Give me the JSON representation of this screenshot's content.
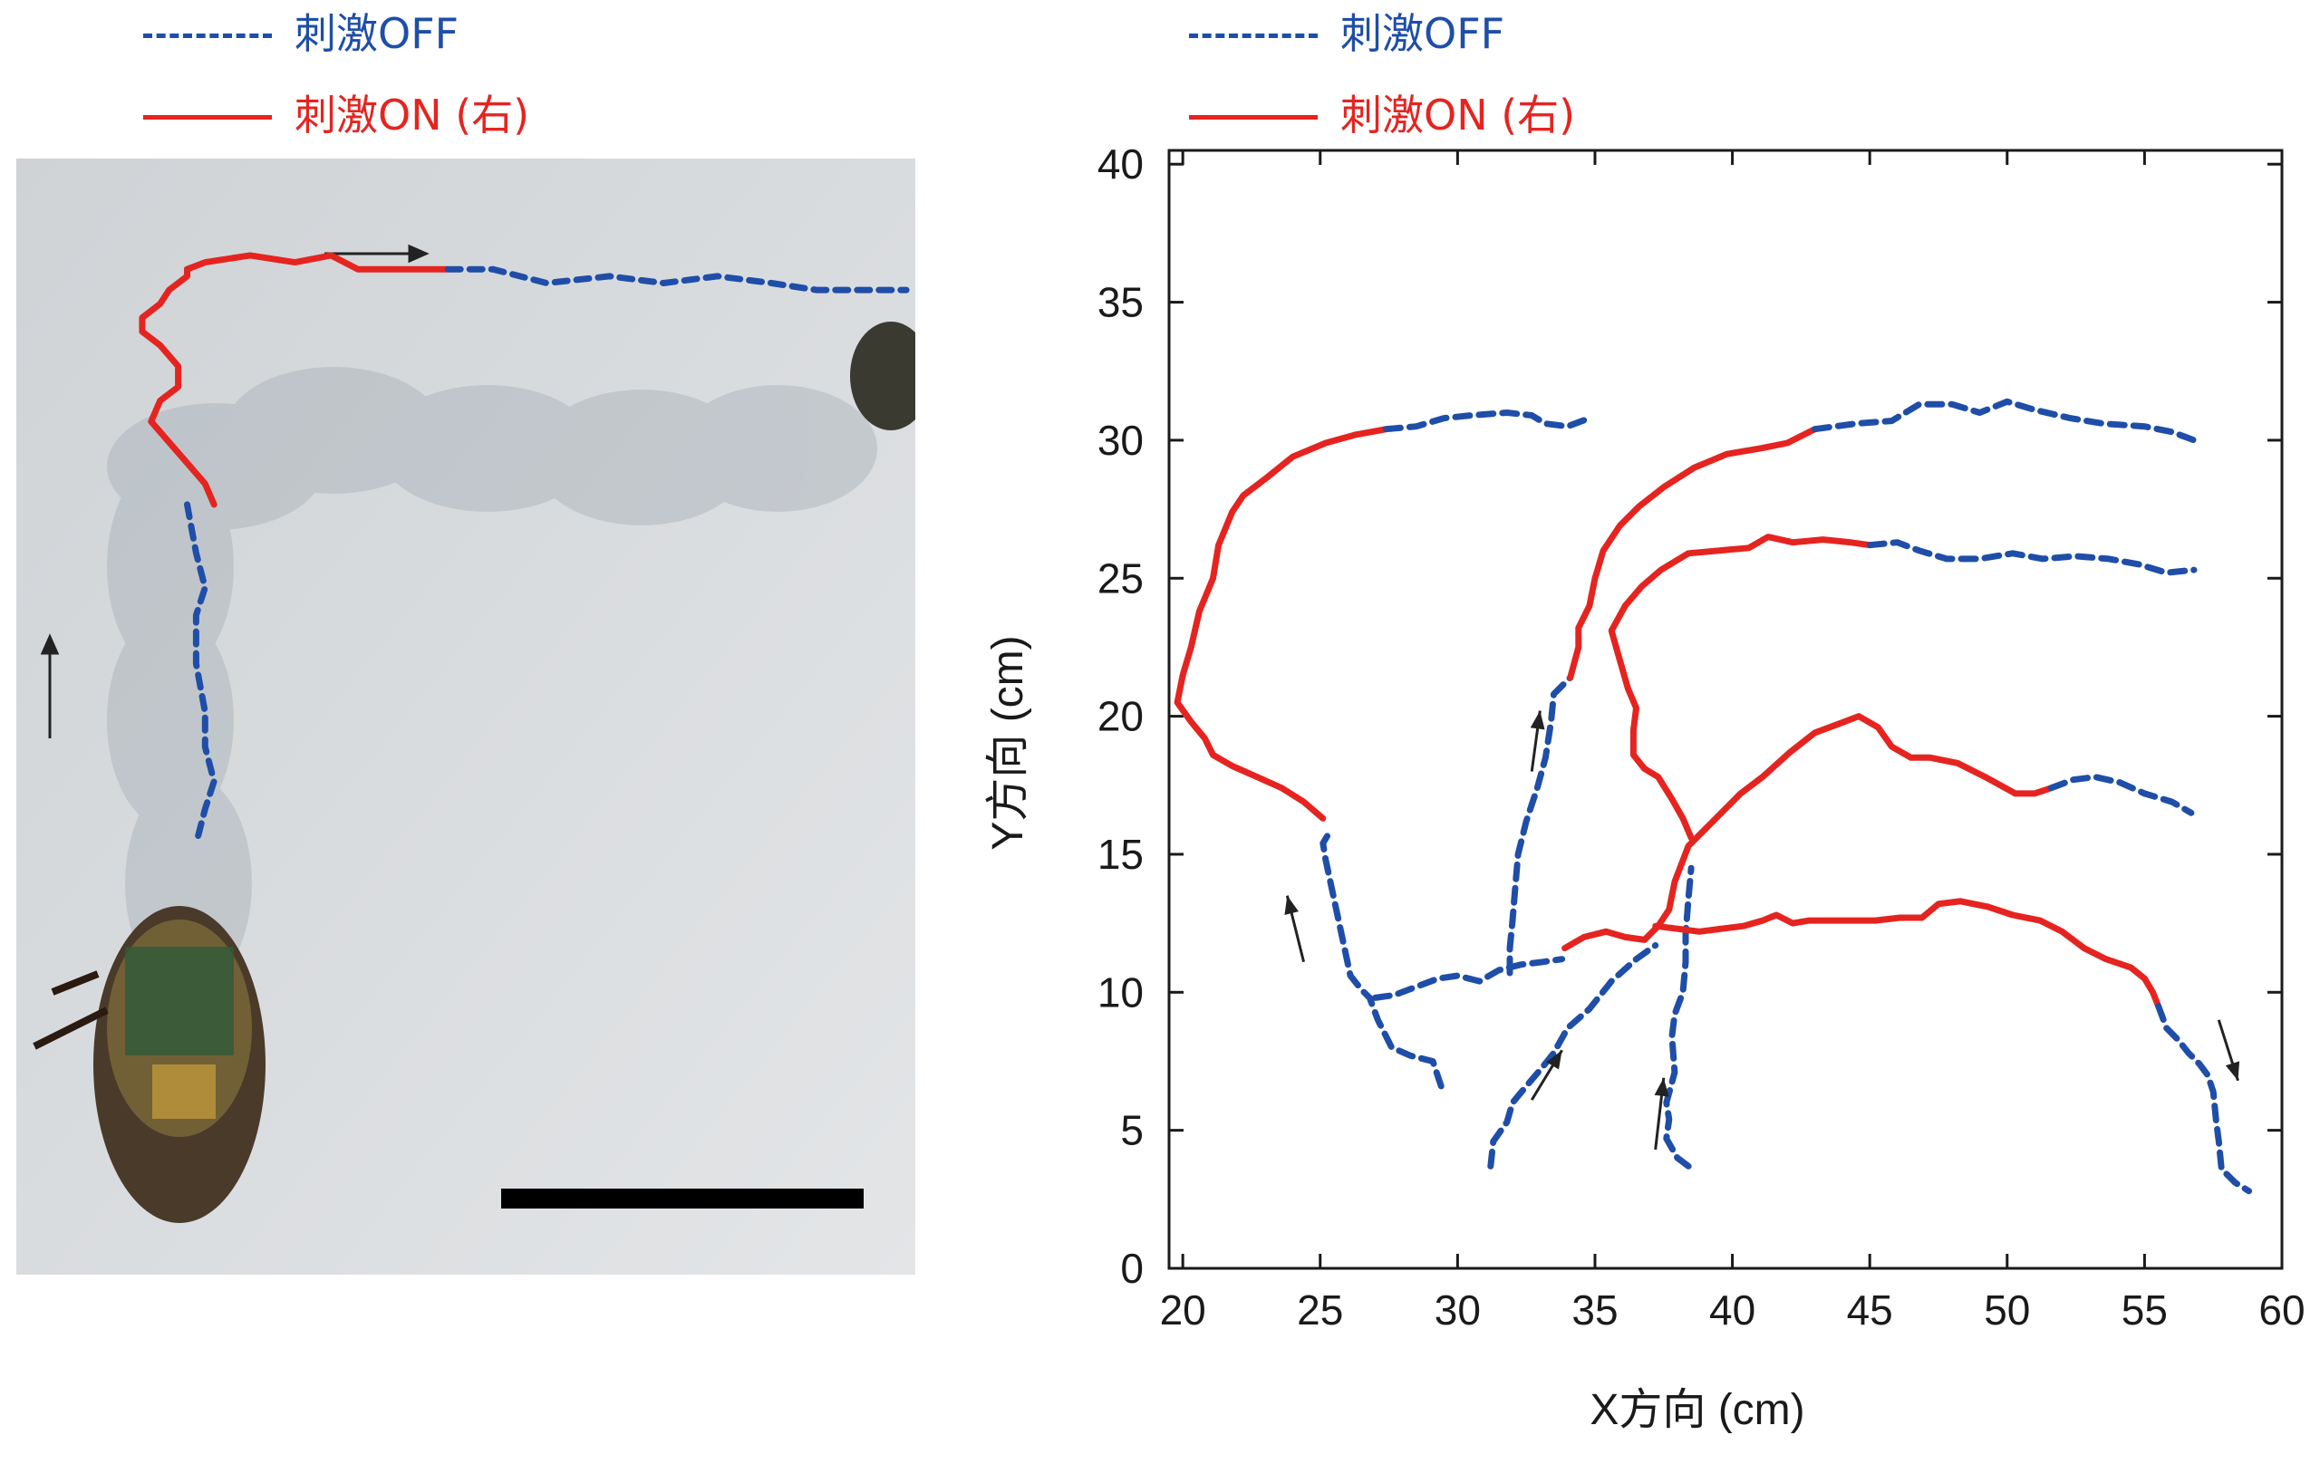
{
  "colors": {
    "off": "#1f4ea8",
    "on": "#e52420",
    "axis": "#1a1a1a",
    "photo_bg": "#d9dde0"
  },
  "legend": {
    "off_label": "刺激OFF",
    "on_label": "刺激ON (右)"
  },
  "photo": {
    "description_icon": "robot-cockroach-photo",
    "off_path": [
      [
        0.19,
        0.5
      ],
      [
        0.2,
        0.57
      ],
      [
        0.21,
        0.62
      ],
      [
        0.2,
        0.66
      ],
      [
        0.2,
        0.73
      ],
      [
        0.21,
        0.8
      ],
      [
        0.21,
        0.85
      ],
      [
        0.22,
        0.9
      ],
      [
        0.21,
        0.94
      ],
      [
        0.2,
        0.99
      ]
    ],
    "on_path": [
      [
        0.22,
        0.5
      ],
      [
        0.21,
        0.47
      ],
      [
        0.19,
        0.44
      ],
      [
        0.17,
        0.41
      ],
      [
        0.15,
        0.38
      ],
      [
        0.16,
        0.35
      ],
      [
        0.18,
        0.33
      ],
      [
        0.18,
        0.3
      ],
      [
        0.16,
        0.27
      ],
      [
        0.14,
        0.25
      ],
      [
        0.14,
        0.23
      ],
      [
        0.16,
        0.21
      ],
      [
        0.17,
        0.19
      ],
      [
        0.19,
        0.17
      ],
      [
        0.19,
        0.16
      ],
      [
        0.21,
        0.15
      ],
      [
        0.26,
        0.14
      ],
      [
        0.31,
        0.15
      ],
      [
        0.35,
        0.14
      ],
      [
        0.38,
        0.16
      ],
      [
        0.41,
        0.16
      ],
      [
        0.45,
        0.16
      ],
      [
        0.48,
        0.16
      ]
    ],
    "off_path2": [
      [
        0.48,
        0.16
      ],
      [
        0.53,
        0.16
      ],
      [
        0.59,
        0.18
      ],
      [
        0.66,
        0.17
      ],
      [
        0.72,
        0.18
      ],
      [
        0.78,
        0.17
      ],
      [
        0.84,
        0.18
      ],
      [
        0.89,
        0.19
      ],
      [
        0.95,
        0.19
      ],
      [
        0.99,
        0.19
      ]
    ]
  },
  "chart_data": {
    "type": "line",
    "xlabel": "X方向 (cm)",
    "ylabel": "Y方向 (cm)",
    "xlim": [
      19.5,
      60
    ],
    "ylim": [
      0,
      40.5
    ],
    "xticks": [
      20,
      25,
      30,
      35,
      40,
      45,
      50,
      55,
      60
    ],
    "yticks": [
      0,
      5,
      10,
      15,
      20,
      25,
      30,
      35,
      40
    ],
    "series": [
      {
        "kind": "off",
        "points": [
          [
            29.4,
            6.6
          ],
          [
            29.1,
            7.5
          ],
          [
            28.3,
            7.7
          ],
          [
            27.6,
            8.0
          ],
          [
            27.1,
            9.0
          ],
          [
            26.8,
            9.8
          ],
          [
            26.5,
            10.1
          ],
          [
            26.1,
            10.6
          ],
          [
            25.8,
            12.0
          ],
          [
            25.5,
            13.4
          ],
          [
            25.2,
            14.8
          ],
          [
            25.1,
            15.4
          ],
          [
            25.4,
            15.9
          ]
        ]
      },
      {
        "kind": "on",
        "points": [
          [
            25.1,
            16.3
          ],
          [
            24.4,
            16.9
          ],
          [
            23.6,
            17.4
          ],
          [
            22.7,
            17.8
          ],
          [
            21.8,
            18.2
          ],
          [
            21.1,
            18.6
          ],
          [
            20.8,
            19.2
          ],
          [
            20.3,
            19.8
          ],
          [
            19.8,
            20.5
          ],
          [
            20.0,
            21.5
          ],
          [
            20.3,
            22.5
          ],
          [
            20.6,
            23.8
          ],
          [
            21.1,
            25.0
          ],
          [
            21.3,
            26.2
          ],
          [
            21.8,
            27.4
          ],
          [
            22.2,
            28.0
          ],
          [
            23.0,
            28.6
          ],
          [
            24.0,
            29.4
          ],
          [
            25.2,
            29.9
          ],
          [
            26.3,
            30.2
          ],
          [
            27.4,
            30.4
          ]
        ]
      },
      {
        "kind": "off",
        "points": [
          [
            27.4,
            30.4
          ],
          [
            28.5,
            30.5
          ],
          [
            29.5,
            30.8
          ],
          [
            30.5,
            30.9
          ],
          [
            31.8,
            31.0
          ],
          [
            32.7,
            30.9
          ],
          [
            33.2,
            30.6
          ],
          [
            34.0,
            30.5
          ],
          [
            34.8,
            30.8
          ]
        ]
      },
      {
        "kind": "off",
        "points": [
          [
            27.0,
            9.8
          ],
          [
            27.7,
            9.9
          ],
          [
            28.5,
            10.2
          ],
          [
            29.3,
            10.5
          ],
          [
            30.0,
            10.6
          ],
          [
            30.8,
            10.4
          ],
          [
            31.5,
            10.8
          ],
          [
            32.3,
            11.0
          ],
          [
            33.1,
            11.1
          ],
          [
            33.8,
            11.2
          ]
        ]
      },
      {
        "kind": "off",
        "points": [
          [
            31.2,
            3.7
          ],
          [
            31.3,
            4.6
          ],
          [
            31.8,
            5.3
          ],
          [
            32.0,
            6.0
          ],
          [
            32.5,
            6.6
          ],
          [
            33.1,
            7.3
          ],
          [
            33.5,
            7.8
          ],
          [
            34.0,
            8.7
          ],
          [
            34.8,
            9.4
          ],
          [
            35.6,
            10.4
          ],
          [
            36.5,
            11.2
          ],
          [
            37.2,
            11.7
          ]
        ]
      },
      {
        "kind": "off",
        "points": [
          [
            31.9,
            10.7
          ],
          [
            31.9,
            11.6
          ],
          [
            32.0,
            12.6
          ],
          [
            32.1,
            13.8
          ],
          [
            32.2,
            15.0
          ],
          [
            32.5,
            16.2
          ],
          [
            32.9,
            17.4
          ],
          [
            33.2,
            18.5
          ],
          [
            33.4,
            19.8
          ],
          [
            33.5,
            20.8
          ],
          [
            34.1,
            21.4
          ]
        ]
      },
      {
        "kind": "on",
        "points": [
          [
            34.1,
            21.4
          ],
          [
            34.4,
            22.5
          ],
          [
            34.4,
            23.2
          ],
          [
            34.8,
            24.0
          ],
          [
            35.0,
            25.0
          ],
          [
            35.3,
            26.0
          ],
          [
            35.9,
            26.9
          ],
          [
            36.6,
            27.6
          ],
          [
            37.5,
            28.3
          ],
          [
            38.6,
            29.0
          ],
          [
            39.8,
            29.5
          ],
          [
            41.0,
            29.7
          ],
          [
            42.0,
            29.9
          ],
          [
            43.0,
            30.4
          ]
        ]
      },
      {
        "kind": "off",
        "points": [
          [
            43.0,
            30.4
          ],
          [
            44.5,
            30.6
          ],
          [
            45.8,
            30.7
          ],
          [
            46.8,
            31.3
          ],
          [
            48.0,
            31.3
          ],
          [
            49.0,
            31.0
          ],
          [
            50.0,
            31.4
          ],
          [
            51.0,
            31.1
          ],
          [
            52.3,
            30.8
          ],
          [
            53.5,
            30.6
          ],
          [
            55.0,
            30.5
          ],
          [
            56.0,
            30.3
          ],
          [
            56.8,
            30.0
          ]
        ]
      },
      {
        "kind": "on",
        "points": [
          [
            33.9,
            11.6
          ],
          [
            34.6,
            12.0
          ],
          [
            35.4,
            12.2
          ],
          [
            36.1,
            12.0
          ],
          [
            36.8,
            11.9
          ],
          [
            37.3,
            12.4
          ],
          [
            37.7,
            13.0
          ],
          [
            37.9,
            14.0
          ],
          [
            38.4,
            15.3
          ],
          [
            39.0,
            15.9
          ],
          [
            39.7,
            16.6
          ],
          [
            40.3,
            17.2
          ],
          [
            41.1,
            17.8
          ],
          [
            42.1,
            18.7
          ],
          [
            43.0,
            19.4
          ],
          [
            43.8,
            19.7
          ],
          [
            44.6,
            20.0
          ],
          [
            45.3,
            19.6
          ],
          [
            45.8,
            18.9
          ],
          [
            46.5,
            18.5
          ],
          [
            47.2,
            18.5
          ],
          [
            48.2,
            18.3
          ],
          [
            49.2,
            17.8
          ],
          [
            50.3,
            17.2
          ],
          [
            51.0,
            17.2
          ],
          [
            51.6,
            17.4
          ]
        ]
      },
      {
        "kind": "off",
        "points": [
          [
            51.6,
            17.4
          ],
          [
            52.4,
            17.7
          ],
          [
            53.2,
            17.8
          ],
          [
            54.1,
            17.6
          ],
          [
            55.0,
            17.2
          ],
          [
            56.0,
            16.9
          ],
          [
            56.7,
            16.5
          ]
        ]
      },
      {
        "kind": "on",
        "points": [
          [
            38.5,
            15.6
          ],
          [
            38.2,
            16.3
          ],
          [
            37.8,
            17.0
          ],
          [
            37.3,
            17.8
          ],
          [
            36.8,
            18.1
          ],
          [
            36.4,
            18.6
          ],
          [
            36.4,
            19.5
          ],
          [
            36.5,
            20.3
          ],
          [
            36.2,
            21.0
          ],
          [
            36.0,
            21.7
          ],
          [
            35.8,
            22.4
          ],
          [
            35.6,
            23.1
          ],
          [
            36.1,
            24.0
          ],
          [
            36.7,
            24.7
          ],
          [
            37.4,
            25.3
          ],
          [
            38.4,
            25.9
          ],
          [
            39.5,
            26.0
          ],
          [
            40.6,
            26.1
          ],
          [
            41.3,
            26.5
          ],
          [
            42.2,
            26.3
          ],
          [
            43.3,
            26.4
          ],
          [
            44.3,
            26.3
          ],
          [
            45.0,
            26.2
          ]
        ]
      },
      {
        "kind": "off",
        "points": [
          [
            45.0,
            26.2
          ],
          [
            46.0,
            26.3
          ],
          [
            46.8,
            26.0
          ],
          [
            47.8,
            25.7
          ],
          [
            49.0,
            25.7
          ],
          [
            50.2,
            25.9
          ],
          [
            51.3,
            25.7
          ],
          [
            52.5,
            25.8
          ],
          [
            53.7,
            25.7
          ],
          [
            54.8,
            25.5
          ],
          [
            55.8,
            25.2
          ],
          [
            56.8,
            25.3
          ]
        ]
      },
      {
        "kind": "off",
        "points": [
          [
            38.4,
            3.7
          ],
          [
            38.0,
            4.0
          ],
          [
            37.6,
            4.7
          ],
          [
            37.7,
            5.4
          ],
          [
            37.6,
            6.0
          ],
          [
            37.9,
            7.1
          ],
          [
            37.8,
            8.4
          ],
          [
            37.9,
            9.2
          ],
          [
            38.2,
            10.0
          ],
          [
            38.3,
            11.1
          ],
          [
            38.3,
            12.1
          ],
          [
            38.4,
            13.4
          ],
          [
            38.5,
            14.5
          ]
        ]
      },
      {
        "kind": "on",
        "points": [
          [
            37.2,
            12.4
          ],
          [
            38.0,
            12.3
          ],
          [
            38.8,
            12.2
          ],
          [
            39.6,
            12.3
          ],
          [
            40.4,
            12.4
          ],
          [
            41.1,
            12.6
          ],
          [
            41.6,
            12.8
          ],
          [
            42.2,
            12.5
          ],
          [
            42.8,
            12.6
          ],
          [
            43.6,
            12.6
          ],
          [
            44.4,
            12.6
          ],
          [
            45.2,
            12.6
          ],
          [
            46.1,
            12.7
          ],
          [
            46.9,
            12.7
          ],
          [
            47.5,
            13.2
          ],
          [
            48.3,
            13.3
          ],
          [
            49.3,
            13.1
          ],
          [
            50.2,
            12.8
          ],
          [
            51.2,
            12.6
          ],
          [
            52.0,
            12.2
          ],
          [
            52.8,
            11.6
          ],
          [
            53.6,
            11.2
          ],
          [
            54.5,
            10.9
          ],
          [
            55.0,
            10.5
          ],
          [
            55.3,
            10.0
          ],
          [
            55.5,
            9.5
          ]
        ]
      },
      {
        "kind": "off",
        "points": [
          [
            55.5,
            9.5
          ],
          [
            55.8,
            8.7
          ],
          [
            56.2,
            8.3
          ],
          [
            56.6,
            7.8
          ],
          [
            57.0,
            7.4
          ],
          [
            57.3,
            7.0
          ],
          [
            57.5,
            6.4
          ],
          [
            57.6,
            5.4
          ],
          [
            57.7,
            4.6
          ],
          [
            57.8,
            3.6
          ],
          [
            58.3,
            3.1
          ],
          [
            58.8,
            2.8
          ]
        ]
      }
    ],
    "arrows": [
      {
        "from": [
          24.4,
          11.1
        ],
        "to": [
          23.8,
          13.5
        ]
      },
      {
        "from": [
          32.7,
          18.0
        ],
        "to": [
          33.0,
          20.2
        ]
      },
      {
        "from": [
          32.7,
          6.1
        ],
        "to": [
          33.8,
          7.9
        ]
      },
      {
        "from": [
          37.2,
          4.3
        ],
        "to": [
          37.5,
          6.9
        ]
      },
      {
        "from": [
          57.7,
          9.0
        ],
        "to": [
          58.4,
          6.8
        ]
      }
    ]
  }
}
